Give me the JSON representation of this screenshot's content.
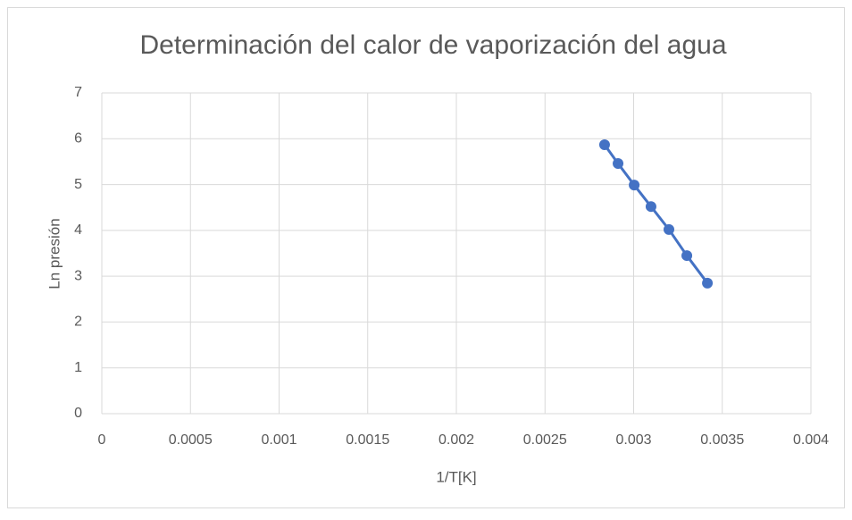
{
  "chart_data": {
    "type": "scatter",
    "title": "Determinación del calor de vaporización del agua",
    "x_label": "1/T[K]",
    "y_label": "Ln presión",
    "series": [
      {
        "color": "#4472c4",
        "x": [
          0.002836,
          0.002912,
          0.003003,
          0.003098,
          0.003199,
          0.0033,
          0.003416
        ],
        "values": [
          5.87,
          5.46,
          4.99,
          4.52,
          4.02,
          3.45,
          2.85
        ]
      }
    ],
    "xlim": [
      0,
      0.004
    ],
    "xticks": [
      0,
      0.0005,
      0.001,
      0.0015,
      0.002,
      0.0025,
      0.003,
      0.0035,
      0.004
    ],
    "ylim": [
      0,
      7
    ],
    "yticks": [
      0,
      1,
      2,
      3,
      4,
      5,
      6,
      7
    ],
    "grid": true
  }
}
